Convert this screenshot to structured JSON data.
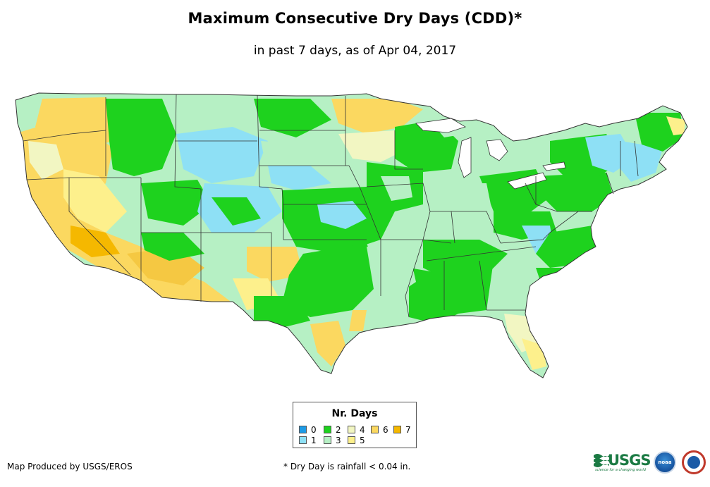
{
  "title": "Maximum Consecutive Dry Days (CDD)*",
  "subtitle": "in past 7 days, as of Apr 04, 2017",
  "legend": {
    "title": "Nr. Days",
    "items": [
      {
        "label": "0",
        "color": "#1e9be6"
      },
      {
        "label": "1",
        "color": "#8ee0f5"
      },
      {
        "label": "2",
        "color": "#1ed21e"
      },
      {
        "label": "3",
        "color": "#b6f0c4"
      },
      {
        "label": "4",
        "color": "#f2f6c2"
      },
      {
        "label": "5",
        "color": "#fdf08c"
      },
      {
        "label": "6",
        "color": "#fbd860"
      },
      {
        "label": "7",
        "color": "#f5b800"
      }
    ]
  },
  "footer": {
    "credit": "Map Produced by USGS/EROS",
    "note": "* Dry Day is rainfall < 0.04 in."
  },
  "logos": {
    "usgs": "USGS",
    "usgs_tagline": "science for a changing world",
    "noaa": "noaa"
  }
}
